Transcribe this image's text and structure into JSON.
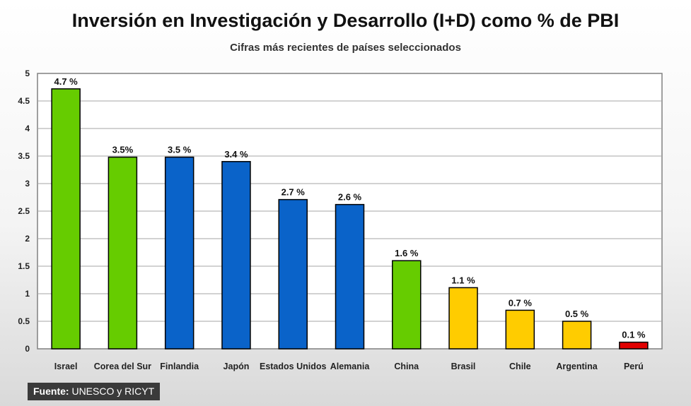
{
  "chart_data": {
    "type": "bar",
    "title": "Inversión en Investigación y Desarrollo (I+D) como % de PBI",
    "subtitle": "Cifras más recientes de países seleccionados",
    "categories": [
      "Israel",
      "Corea del Sur",
      "Finlandia",
      "Japón",
      "Estados Unidos",
      "Alemania",
      "China",
      "Brasil",
      "Chile",
      "Argentina",
      "Perú"
    ],
    "values": [
      4.72,
      3.48,
      3.48,
      3.4,
      2.71,
      2.62,
      1.6,
      1.11,
      0.7,
      0.5,
      0.12
    ],
    "data_labels": [
      "4.7 %",
      "3.5%",
      "3.5 %",
      "3.4 %",
      "2.7 %",
      "2.6 %",
      "1.6 %",
      "1.1 %",
      "0.7 %",
      "0.5 %",
      "0.1 %"
    ],
    "colors": [
      "#66cc00",
      "#66cc00",
      "#0a63c9",
      "#0a63c9",
      "#0a63c9",
      "#0a63c9",
      "#66cc00",
      "#ffcc00",
      "#ffcc00",
      "#ffcc00",
      "#e00000"
    ],
    "y_ticks": [
      "0",
      "0.5",
      "1",
      "1.5",
      "2",
      "2.5",
      "3",
      "3.5",
      "4",
      "4.5",
      "5"
    ],
    "ylim": [
      0,
      5
    ],
    "grid": true,
    "xlabel": "",
    "ylabel": ""
  },
  "source": {
    "label": "Fuente:",
    "text": " UNESCO y RICYT"
  }
}
